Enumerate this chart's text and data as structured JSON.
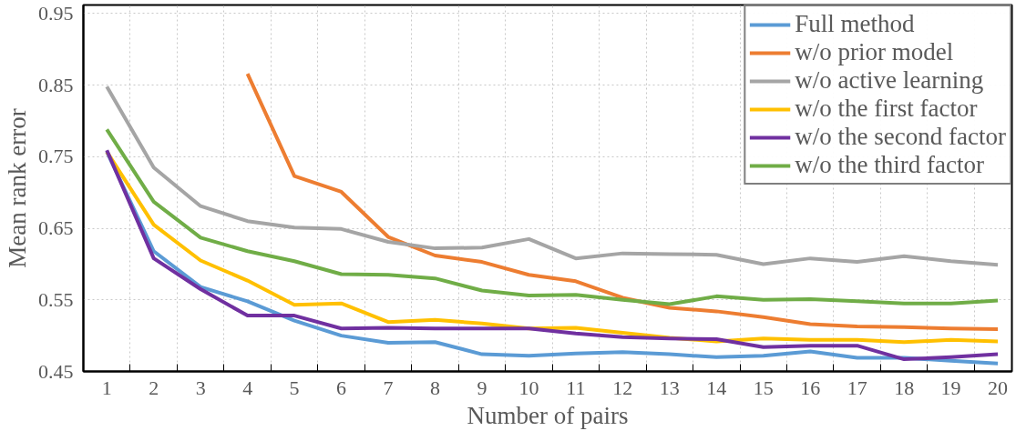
{
  "chart_data": {
    "type": "line",
    "xlabel": "Number of pairs",
    "ylabel": "Mean rank error",
    "x": [
      1,
      2,
      3,
      4,
      5,
      6,
      7,
      8,
      9,
      10,
      11,
      12,
      13,
      14,
      15,
      16,
      17,
      18,
      19,
      20
    ],
    "xlim": [
      0.5,
      20.3
    ],
    "xticks": [
      1,
      2,
      3,
      4,
      5,
      6,
      7,
      8,
      9,
      10,
      11,
      12,
      13,
      14,
      15,
      16,
      17,
      18,
      19,
      20
    ],
    "ylim": [
      0.45,
      0.962
    ],
    "yticks": [
      0.45,
      0.55,
      0.65,
      0.75,
      0.85,
      0.95
    ],
    "grid": true,
    "legend": "top right",
    "line_style": "solid",
    "marker": "none",
    "series": [
      {
        "name": "Full method",
        "color": "#5b9bd5",
        "values": [
          0.757,
          0.618,
          0.568,
          0.548,
          0.521,
          0.5,
          0.49,
          0.491,
          0.474,
          0.472,
          0.475,
          0.477,
          0.474,
          0.47,
          0.472,
          0.478,
          0.469,
          0.469,
          0.465,
          0.461
        ]
      },
      {
        "name": "w/o prior model",
        "color": "#ed7d31",
        "values": [
          null,
          null,
          null,
          0.866,
          0.723,
          0.701,
          0.638,
          0.612,
          0.603,
          0.585,
          0.576,
          0.553,
          0.539,
          0.534,
          0.526,
          0.516,
          0.513,
          0.512,
          0.51,
          0.509
        ]
      },
      {
        "name": "w/o active learning",
        "color": "#a5a5a5",
        "values": [
          0.848,
          0.735,
          0.681,
          0.66,
          0.651,
          0.649,
          0.631,
          0.622,
          0.623,
          0.635,
          0.608,
          0.615,
          0.614,
          0.613,
          0.6,
          0.608,
          0.603,
          0.611,
          0.604,
          0.599
        ]
      },
      {
        "name": "w/o the first factor",
        "color": "#ffc000",
        "values": [
          0.757,
          0.655,
          0.605,
          0.577,
          0.543,
          0.545,
          0.519,
          0.522,
          0.517,
          0.51,
          0.511,
          0.504,
          0.497,
          0.492,
          0.496,
          0.494,
          0.494,
          0.491,
          0.494,
          0.492
        ]
      },
      {
        "name": "w/o the second factor",
        "color": "#7030a0",
        "values": [
          0.759,
          0.608,
          0.565,
          0.528,
          0.528,
          0.51,
          0.511,
          0.51,
          0.51,
          0.51,
          0.503,
          0.498,
          0.496,
          0.495,
          0.484,
          0.486,
          0.486,
          0.467,
          0.47,
          0.474
        ]
      },
      {
        "name": "w/o the third factor",
        "color": "#70ad47",
        "values": [
          0.788,
          0.687,
          0.637,
          0.618,
          0.604,
          0.586,
          0.585,
          0.58,
          0.563,
          0.556,
          0.557,
          0.55,
          0.544,
          0.555,
          0.55,
          0.551,
          0.548,
          0.545,
          0.545,
          0.549
        ]
      }
    ]
  }
}
